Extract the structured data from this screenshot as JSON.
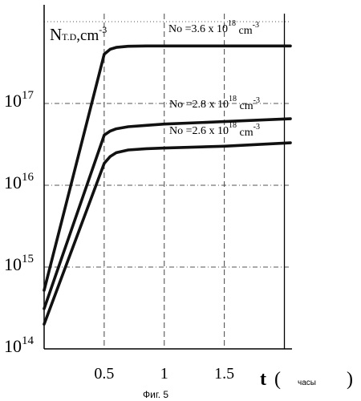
{
  "caption": "Фиг. 5",
  "chart_data": {
    "type": "line",
    "y_scale": "log",
    "ylabel_main": "N",
    "ylabel_sub": "T.D",
    "ylabel_unit": ",cm",
    "ylabel_exp": "-3",
    "xlabel_main": "t",
    "xlabel_open": "(",
    "xlabel_unit": "часы",
    "xlabel_close": ")",
    "xlim": [
      0,
      2.05
    ],
    "ylim": [
      100000000000000.0,
      1e+18
    ],
    "x_ticks": [
      {
        "value": 0.5,
        "label": "0.5"
      },
      {
        "value": 1,
        "label": "1"
      },
      {
        "value": 1.5,
        "label": "1.5"
      },
      {
        "value": 2,
        "label": ""
      }
    ],
    "y_ticks": [
      {
        "value": 100000000000000.0,
        "base": "10",
        "exp": "14"
      },
      {
        "value": 1000000000000000.0,
        "base": "10",
        "exp": "15"
      },
      {
        "value": 1e+16,
        "base": "10",
        "exp": "16"
      },
      {
        "value": 1e+17,
        "base": "10",
        "exp": "17"
      }
    ],
    "top_dotted_line_value": 1e+18,
    "series": [
      {
        "name": "No =3.6 x 10",
        "name_exp": "18",
        "name_unit": "cm",
        "name_unit_exp": "-3",
        "x": [
          0,
          0.5,
          0.55,
          0.6,
          0.7,
          0.85,
          1.0,
          1.5,
          2.05
        ],
        "y": [
          520000000000000.0,
          4e+17,
          4.6e+17,
          4.85e+17,
          5e+17,
          5.05e+17,
          5.05e+17,
          5.05e+17,
          5.05e+17
        ]
      },
      {
        "name": "No =2.8 x 10",
        "name_exp": "18",
        "name_unit": "cm",
        "name_unit_exp": "-3",
        "x": [
          0,
          0.5,
          0.55,
          0.6,
          0.7,
          0.85,
          1.0,
          1.5,
          2.05
        ],
        "y": [
          310000000000000.0,
          4.1e+16,
          4.6e+16,
          4.9e+16,
          5.2e+16,
          5.4e+16,
          5.6e+16,
          6e+16,
          6.5e+16
        ]
      },
      {
        "name": "No =2.6 x 10",
        "name_exp": "18",
        "name_unit": "cm",
        "name_unit_exp": "-3",
        "x": [
          0,
          0.5,
          0.55,
          0.6,
          0.7,
          0.85,
          1.0,
          1.5,
          2.05
        ],
        "y": [
          200000000000000.0,
          1.85e+16,
          2.25e+16,
          2.5e+16,
          2.7e+16,
          2.8e+16,
          2.85e+16,
          3e+16,
          3.3e+16
        ]
      }
    ]
  }
}
